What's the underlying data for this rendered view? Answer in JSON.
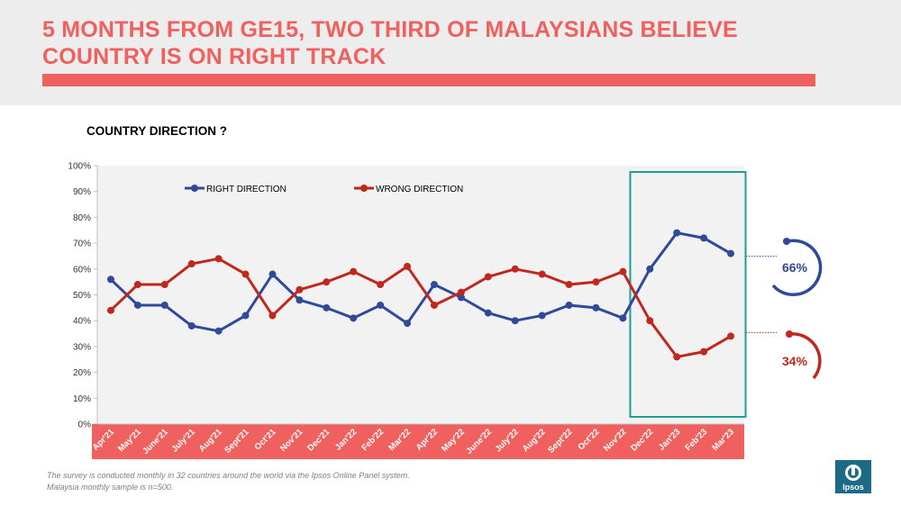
{
  "header": {
    "title_line1": "5 MONTHS FROM GE15, TWO THIRD OF MALAYSIANS BELIEVE",
    "title_line2": "COUNTRY IS ON RIGHT TRACK"
  },
  "chart_title": "COUNTRY DIRECTION ?",
  "footnote": {
    "line1": "The survey is conducted monthly in 32 countries around the world via the Ipsos Online Panel system.",
    "line2": "Malaysia monthly sample is n=500."
  },
  "logo": {
    "text": "Ipsos"
  },
  "callouts": {
    "right": "66%",
    "wrong": "34%"
  },
  "chart_data": {
    "type": "line",
    "title": "COUNTRY DIRECTION ?",
    "categories": [
      "Apr'21",
      "May'21",
      "June'21",
      "July'21",
      "Aug'21",
      "Sept'21",
      "Oct'21",
      "Nov'21",
      "Dec'21",
      "Jan'22",
      "Feb'22",
      "Mar'22",
      "Apr'22",
      "May'22",
      "June'22",
      "July'22",
      "Aug'22",
      "Sept'22",
      "Oct'22",
      "Nov'22",
      "Dec'22",
      "Jan'23",
      "Feb'23",
      "Mar'23"
    ],
    "y_ticks": [
      "0%",
      "10%",
      "20%",
      "30%",
      "40%",
      "50%",
      "60%",
      "70%",
      "80%",
      "90%",
      "100%"
    ],
    "ylim": [
      0,
      100
    ],
    "series": [
      {
        "name": "RIGHT DIRECTION",
        "color": "#2f4a9b",
        "values": [
          56,
          46,
          46,
          38,
          36,
          42,
          58,
          48,
          45,
          41,
          46,
          39,
          54,
          49,
          43,
          40,
          42,
          46,
          45,
          41,
          60,
          74,
          72,
          66
        ]
      },
      {
        "name": "WRONG DIRECTION",
        "color": "#c0281e",
        "values": [
          44,
          54,
          54,
          62,
          64,
          58,
          42,
          52,
          55,
          59,
          54,
          61,
          46,
          51,
          57,
          60,
          58,
          54,
          55,
          59,
          40,
          26,
          28,
          34
        ]
      }
    ],
    "legend_position": "top",
    "grid": false,
    "highlight_range": [
      "Dec'22",
      "Mar'23"
    ],
    "highlight_color": "#1f9e97",
    "axis_band_color": "#f0605e"
  }
}
